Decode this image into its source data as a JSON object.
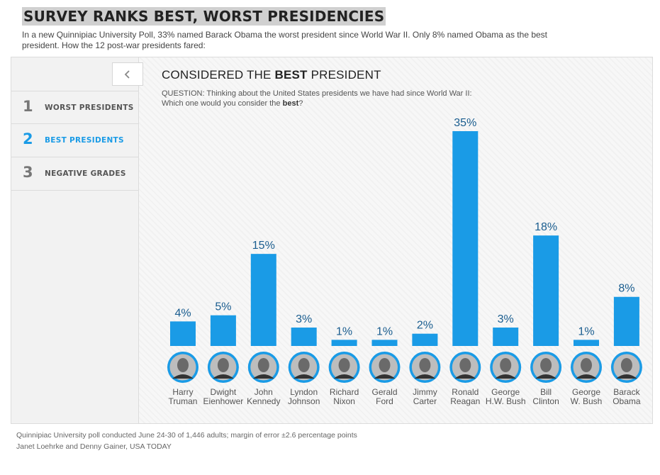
{
  "header": {
    "headline": "SURVEY RANKS BEST, WORST PRESIDENCIES",
    "intro": "In a new Quinnipiac University Poll, 33% named Barack Obama the worst president since World War II. Only 8% named Obama as the best president. How the 12 post-war presidents fared:"
  },
  "nav": {
    "back_icon": "chevron-left-icon",
    "items": [
      {
        "number": "1",
        "label": "WORST PRESIDENTS"
      },
      {
        "number": "2",
        "label": "BEST PRESIDENTS"
      },
      {
        "number": "3",
        "label": "NEGATIVE GRADES"
      }
    ]
  },
  "chart_header": {
    "title_prefix": "CONSIDERED THE ",
    "title_bold": "BEST",
    "title_suffix": " PRESIDENT",
    "question_line1": "QUESTION: Thinking about the United States presidents we have had since World War II:",
    "question_line2_prefix": "Which one would you consider the ",
    "question_line2_bold": "best",
    "question_line2_suffix": "?"
  },
  "chart_data": {
    "type": "bar",
    "title": "CONSIDERED THE BEST PRESIDENT",
    "xlabel": "",
    "ylabel": "",
    "ylim": [
      0,
      35
    ],
    "grid": false,
    "categories": [
      [
        "Harry",
        "Truman"
      ],
      [
        "Dwight",
        "Eienhower"
      ],
      [
        "John",
        "Kennedy"
      ],
      [
        "Lyndon",
        "Johnson"
      ],
      [
        "Richard",
        "Nixon"
      ],
      [
        "Gerald",
        "Ford"
      ],
      [
        "Jimmy",
        "Carter"
      ],
      [
        "Ronald",
        "Reagan"
      ],
      [
        "George",
        "H.W. Bush"
      ],
      [
        "Bill",
        "Clinton"
      ],
      [
        "George",
        "W. Bush"
      ],
      [
        "Barack",
        "Obama"
      ]
    ],
    "values": [
      4,
      5,
      15,
      3,
      1,
      1,
      2,
      35,
      3,
      18,
      1,
      8
    ],
    "value_labels": [
      "4%",
      "5%",
      "15%",
      "3%",
      "1%",
      "1%",
      "2%",
      "35%",
      "3%",
      "18%",
      "1%",
      "8%"
    ],
    "bar_color": "#1a9be6",
    "label_color": "#1a5d8f"
  },
  "footer": {
    "line1": "Quinnipiac University poll conducted June 24-30 of 1,446 adults; margin of error ±2.6 percentage points",
    "line2": "Janet Loehrke and Denny Gainer, USA TODAY"
  }
}
